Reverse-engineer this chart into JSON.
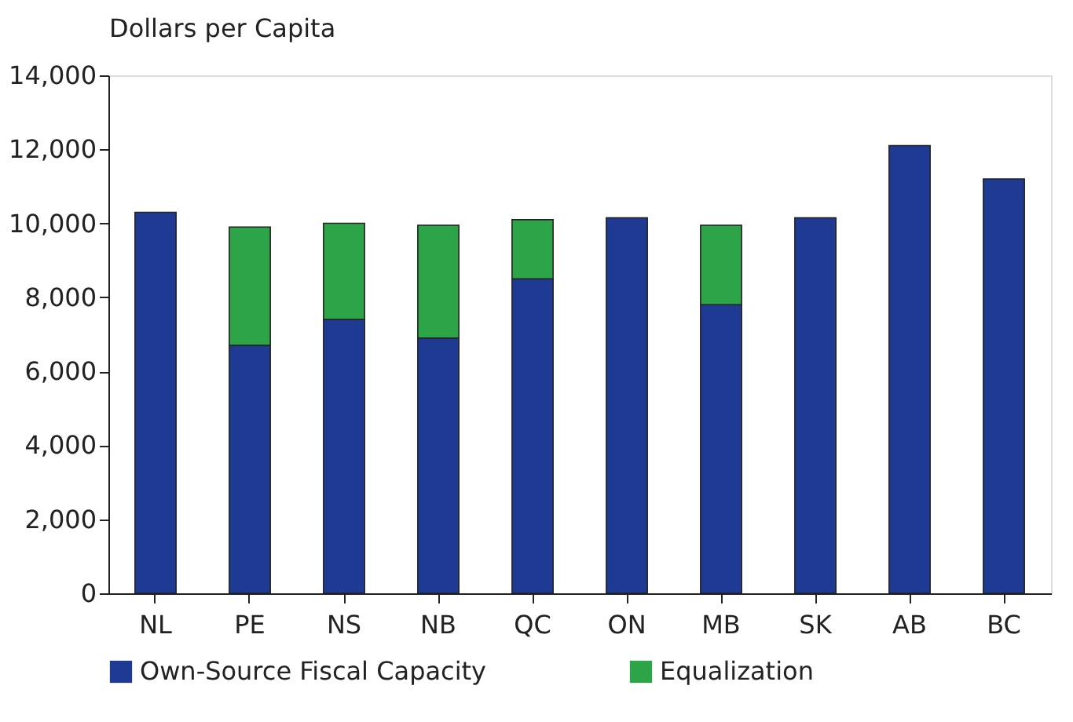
{
  "chart_data": {
    "type": "bar",
    "stacked": true,
    "ylabel": "Dollars per Capita",
    "categories": [
      "NL",
      "PE",
      "NS",
      "NB",
      "QC",
      "ON",
      "MB",
      "SK",
      "AB",
      "BC"
    ],
    "series": [
      {
        "name": "Own-Source Fiscal Capacity",
        "color": "#1f3a93",
        "values": [
          10300,
          6700,
          7400,
          6900,
          8500,
          10150,
          7800,
          10150,
          12100,
          11200
        ]
      },
      {
        "name": "Equalization",
        "color": "#2ea449",
        "values": [
          null,
          3200,
          2600,
          3050,
          1600,
          null,
          2150,
          null,
          null,
          null
        ]
      }
    ],
    "ylim": [
      0,
      14000
    ],
    "yticks": [
      {
        "value": 0,
        "label": "0"
      },
      {
        "value": 2000,
        "label": "2,000"
      },
      {
        "value": 4000,
        "label": "4,000"
      },
      {
        "value": 6000,
        "label": "6,000"
      },
      {
        "value": 8000,
        "label": "8,000"
      },
      {
        "value": 10000,
        "label": "10,000"
      },
      {
        "value": 12000,
        "label": "12,000"
      },
      {
        "value": 14000,
        "label": "14,000"
      }
    ],
    "grid": false,
    "legend": "bottom"
  }
}
